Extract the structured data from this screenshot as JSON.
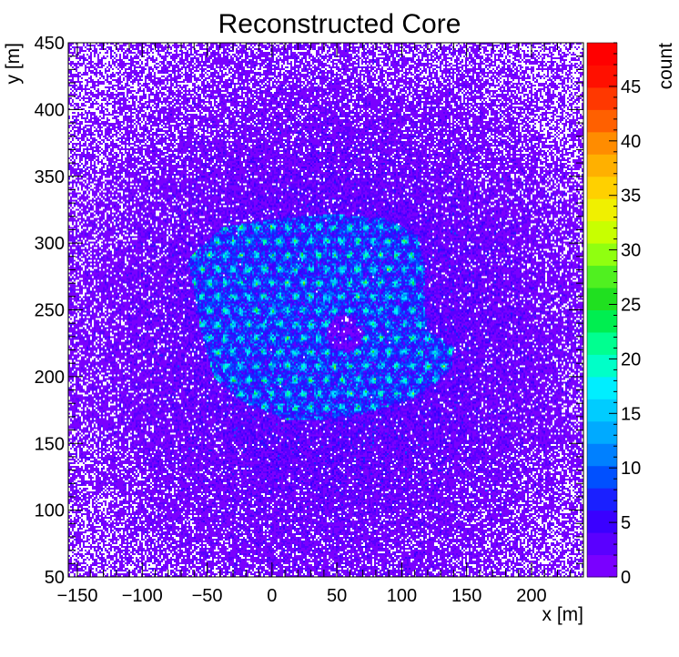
{
  "chart_data": {
    "type": "heatmap",
    "title": "Reconstructed Core",
    "xlabel": "x [m]",
    "ylabel": "y [m]",
    "zlabel": "count",
    "xlim": [
      -157,
      240
    ],
    "ylim": [
      50,
      450
    ],
    "zlim": [
      0,
      49
    ],
    "x_ticks": [
      -150,
      -100,
      -50,
      0,
      50,
      100,
      150,
      200
    ],
    "x_tick_labels": [
      "−150",
      "−100",
      "−50",
      "0",
      "50",
      "100",
      "150",
      "200"
    ],
    "y_ticks": [
      50,
      100,
      150,
      200,
      250,
      300,
      350,
      400,
      450
    ],
    "y_tick_labels": [
      "50",
      "100",
      "150",
      "200",
      "250",
      "300",
      "350",
      "400",
      "450"
    ],
    "z_ticks": [
      0,
      5,
      10,
      15,
      20,
      25,
      30,
      35,
      40,
      45
    ],
    "z_tick_labels": [
      "0",
      "5",
      "10",
      "15",
      "20",
      "25",
      "30",
      "35",
      "40",
      "45"
    ],
    "palette": [
      "#7a00ff",
      "#5a00ff",
      "#3a00ff",
      "#1a20ff",
      "#0050ff",
      "#0080ff",
      "#00aaff",
      "#00ccff",
      "#00eeff",
      "#00ffc8",
      "#00ff90",
      "#00ee50",
      "#20e020",
      "#50f020",
      "#90ff10",
      "#c8ff00",
      "#f0f000",
      "#ffd000",
      "#ffb000",
      "#ff8c00",
      "#ff6000",
      "#ff3800",
      "#ff1000",
      "#ff0000"
    ],
    "grid": false,
    "density_features": {
      "background_level": 1.2,
      "halo_center": [
        48,
        232
      ],
      "halo_level": 3.5,
      "array_region_level": 13,
      "array_polygon": [
        [
          -65,
          288
        ],
        [
          -38,
          312
        ],
        [
          0,
          318
        ],
        [
          45,
          322
        ],
        [
          90,
          318
        ],
        [
          112,
          306
        ],
        [
          118,
          282
        ],
        [
          117,
          262
        ],
        [
          120,
          235
        ],
        [
          140,
          222
        ],
        [
          138,
          205
        ],
        [
          122,
          192
        ],
        [
          105,
          182
        ],
        [
          70,
          172
        ],
        [
          40,
          168
        ],
        [
          10,
          168
        ],
        [
          -25,
          182
        ],
        [
          -45,
          200
        ],
        [
          -55,
          235
        ],
        [
          -60,
          265
        ]
      ],
      "station_spacing": 12,
      "station_peak_level": 28,
      "central_hole": [
        56,
        232
      ],
      "central_hole_radius": 14
    }
  }
}
